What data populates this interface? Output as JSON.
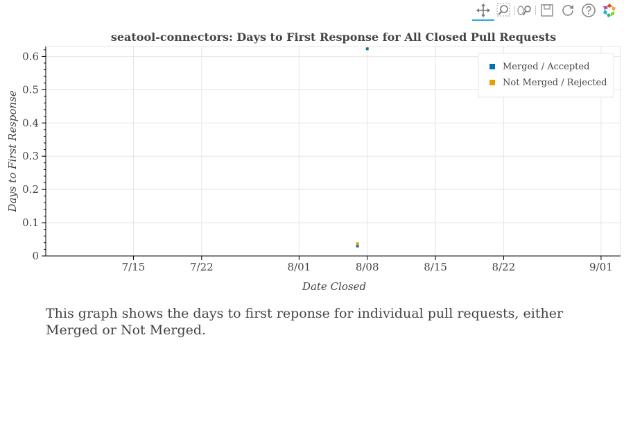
{
  "toolbar": {
    "tools": [
      {
        "name": "pan-icon",
        "active": true
      },
      {
        "name": "box-zoom-icon",
        "active": false
      },
      {
        "name": "wheel-zoom-icon",
        "active": false
      },
      {
        "name": "save-icon",
        "active": false
      },
      {
        "name": "reset-icon",
        "active": false
      },
      {
        "name": "help-icon",
        "active": false
      },
      {
        "name": "bokeh-logo-icon",
        "active": false
      }
    ],
    "accent_color": "#26aae1"
  },
  "chart_data": {
    "type": "scatter",
    "title": "seatool-connectors: Days to First Response for All Closed Pull Requests",
    "xlabel": "Date Closed",
    "ylabel": "Days to First Response",
    "x_axis_type": "datetime",
    "xlim": [
      "2021-07-06",
      "2021-09-03"
    ],
    "ylim": [
      0,
      0.63
    ],
    "x_ticks": [
      {
        "label": "7/15",
        "date": "2021-07-15"
      },
      {
        "label": "7/22",
        "date": "2021-07-22"
      },
      {
        "label": "8/01",
        "date": "2021-08-01"
      },
      {
        "label": "8/08",
        "date": "2021-08-08"
      },
      {
        "label": "8/15",
        "date": "2021-08-15"
      },
      {
        "label": "8/22",
        "date": "2021-08-22"
      },
      {
        "label": "9/01",
        "date": "2021-09-01"
      }
    ],
    "y_ticks": [
      {
        "label": "0",
        "value": 0
      },
      {
        "label": "0.1",
        "value": 0.1
      },
      {
        "label": "0.2",
        "value": 0.2
      },
      {
        "label": "0.3",
        "value": 0.3
      },
      {
        "label": "0.4",
        "value": 0.4
      },
      {
        "label": "0.5",
        "value": 0.5
      },
      {
        "label": "0.6",
        "value": 0.6
      }
    ],
    "grid": true,
    "legend_position": "top-right",
    "series": [
      {
        "name": "Merged / Accepted",
        "color": "#0072b2",
        "points": [
          {
            "x": "2021-08-08",
            "y": 0.623
          },
          {
            "x": "2021-08-07",
            "y": 0.03
          }
        ]
      },
      {
        "name": "Not Merged / Rejected",
        "color": "#e69f00",
        "points": [
          {
            "x": "2021-08-07",
            "y": 0.037
          }
        ]
      }
    ]
  },
  "caption": "This graph shows the days to first reponse for individual pull requests, either Merged or Not Merged."
}
